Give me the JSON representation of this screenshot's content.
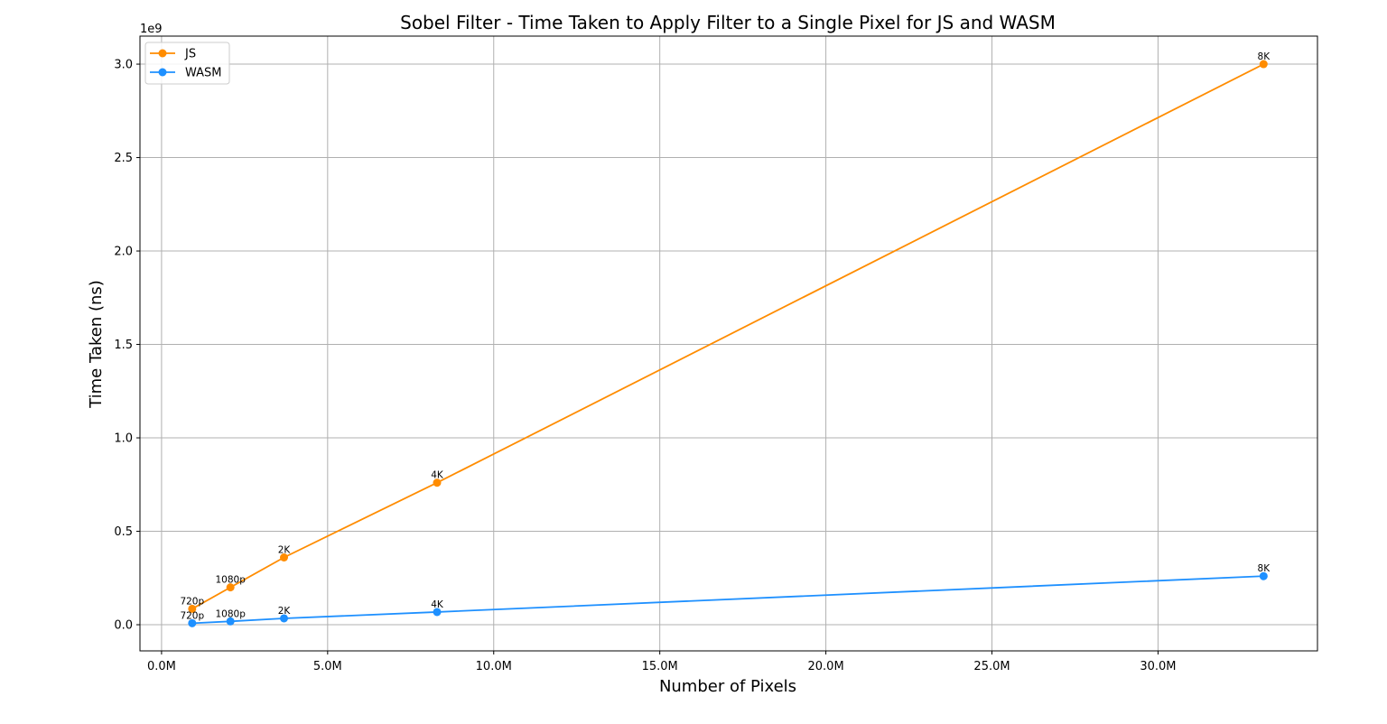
{
  "chart_data": {
    "type": "line",
    "title": "Sobel Filter - Time Taken to Apply Filter to a Single Pixel for JS and WASM",
    "xlabel": "Number of Pixels",
    "ylabel": "Time Taken (ns)",
    "y_offset_label": "1e9",
    "xlim": [
      -0.65,
      34.8
    ],
    "ylim": [
      -0.14,
      3.15
    ],
    "x_unit": "million pixels",
    "y_unit": "1e9 ns",
    "x_ticks": [
      0,
      5,
      10,
      15,
      20,
      25,
      30
    ],
    "x_tick_labels": [
      "0.0M",
      "5.0M",
      "10.0M",
      "15.0M",
      "20.0M",
      "25.0M",
      "30.0M"
    ],
    "y_ticks": [
      0,
      0.5,
      1.0,
      1.5,
      2.0,
      2.5,
      3.0
    ],
    "y_tick_labels": [
      "0.0",
      "0.5",
      "1.0",
      "1.5",
      "2.0",
      "2.5",
      "3.0"
    ],
    "grid": true,
    "legend_position": "top-left",
    "series": [
      {
        "name": "JS",
        "color": "#ff8c00",
        "x": [
          0.9216,
          2.0736,
          3.6864,
          8.2944,
          33.1776
        ],
        "y": [
          0.085,
          0.2,
          0.36,
          0.76,
          3.0
        ],
        "point_labels": [
          "720p",
          "1080p",
          "2K",
          "4K",
          "8K"
        ]
      },
      {
        "name": "WASM",
        "color": "#1e90ff",
        "x": [
          0.9216,
          2.0736,
          3.6864,
          8.2944,
          33.1776
        ],
        "y": [
          0.008,
          0.018,
          0.034,
          0.068,
          0.26
        ],
        "point_labels": [
          "720p",
          "1080p",
          "2K",
          "4K",
          "8K"
        ]
      }
    ]
  }
}
